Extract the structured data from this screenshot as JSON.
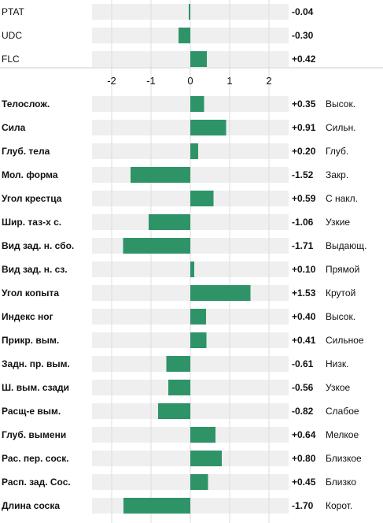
{
  "colors": {
    "bar": "#2e9467",
    "track": "#efefef",
    "grid": "#dddddd",
    "divider": "#cccccc"
  },
  "chart_data": {
    "type": "bar",
    "orientation": "horizontal",
    "xlim": [
      -2.5,
      2.5
    ],
    "ticks": [
      "-2",
      "-1",
      "0",
      "1",
      "2"
    ],
    "tick_values": [
      -2,
      -1,
      0,
      1,
      2
    ],
    "groups": [
      {
        "rows": [
          {
            "label": "PTAT",
            "value": -0.04,
            "value_label": "-0.04",
            "descriptor": ""
          },
          {
            "label": "UDC",
            "value": -0.3,
            "value_label": "-0.30",
            "descriptor": ""
          },
          {
            "label": "FLC",
            "value": 0.42,
            "value_label": "+0.42",
            "descriptor": ""
          }
        ]
      },
      {
        "rows": [
          {
            "label": "Телослож.",
            "value": 0.35,
            "value_label": "+0.35",
            "descriptor": "Высок."
          },
          {
            "label": "Сила",
            "value": 0.91,
            "value_label": "+0.91",
            "descriptor": "Сильн."
          },
          {
            "label": "Глуб. тела",
            "value": 0.2,
            "value_label": "+0.20",
            "descriptor": "Глуб."
          },
          {
            "label": "Мол. форма",
            "value": -1.52,
            "value_label": "-1.52",
            "descriptor": "Закр."
          },
          {
            "label": "Угол крестца",
            "value": 0.59,
            "value_label": "+0.59",
            "descriptor": "С накл."
          },
          {
            "label": "Шир. таз-х с.",
            "value": -1.06,
            "value_label": "-1.06",
            "descriptor": "Узкие"
          },
          {
            "label": "Вид зад. н. сбо.",
            "value": -1.71,
            "value_label": "-1.71",
            "descriptor": "Выдающ."
          },
          {
            "label": "Вид зад. н. сз.",
            "value": 0.1,
            "value_label": "+0.10",
            "descriptor": "Прямой"
          },
          {
            "label": "Угол копыта",
            "value": 1.53,
            "value_label": "+1.53",
            "descriptor": "Крутой"
          },
          {
            "label": "Индекс ног",
            "value": 0.4,
            "value_label": "+0.40",
            "descriptor": "Высок."
          },
          {
            "label": "Прикр. вым.",
            "value": 0.41,
            "value_label": "+0.41",
            "descriptor": "Сильное"
          },
          {
            "label": "Задн. пр. вым.",
            "value": -0.61,
            "value_label": "-0.61",
            "descriptor": "Низк."
          },
          {
            "label": "Ш. вым. сзади",
            "value": -0.56,
            "value_label": "-0.56",
            "descriptor": "Узкое"
          },
          {
            "label": "Расщ-е вым.",
            "value": -0.82,
            "value_label": "-0.82",
            "descriptor": "Слабое"
          },
          {
            "label": "Глуб. вымени",
            "value": 0.64,
            "value_label": "+0.64",
            "descriptor": "Мелкое"
          },
          {
            "label": "Рас. пер. соск.",
            "value": 0.8,
            "value_label": "+0.80",
            "descriptor": "Близкое"
          },
          {
            "label": "Расп. зад. Сос.",
            "value": 0.45,
            "value_label": "+0.45",
            "descriptor": "Близко"
          },
          {
            "label": "Длина соска",
            "value": -1.7,
            "value_label": "-1.70",
            "descriptor": "Корот."
          }
        ]
      }
    ]
  }
}
